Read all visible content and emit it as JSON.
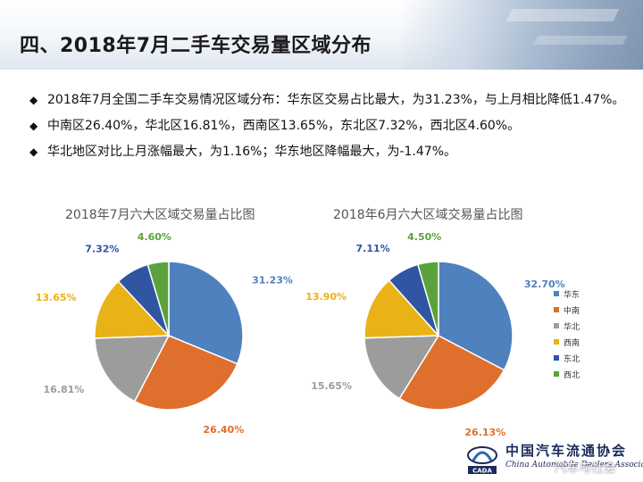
{
  "header": {
    "title": "四、2018年7月二手车交易量区域分布"
  },
  "bullets": [
    "2018年7月全国二手车交易情况区域分布：华东区交易占比最大，为31.23%，与上月相比降低1.47%。",
    "中南区26.40%，华北区16.81%，西南区13.65%，东北区7.32%，西北区4.60%。",
    "华北地区对比上月涨幅最大，为1.16%；华东地区降幅最大，为-1.47%。"
  ],
  "colors": {
    "华东": "#4e81bd",
    "中南": "#de6f2d",
    "华北": "#9c9c9c",
    "西南": "#e9b216",
    "东北": "#2f55a3",
    "西北": "#5aa33c"
  },
  "legend": [
    "华东",
    "中南",
    "华北",
    "西南",
    "东北",
    "西北"
  ],
  "chart_data": [
    {
      "type": "pie",
      "title": "2018年7月六大区域交易量占比图",
      "categories": [
        "华东",
        "中南",
        "华北",
        "西南",
        "东北",
        "西北"
      ],
      "values": [
        31.23,
        26.4,
        16.81,
        13.65,
        7.32,
        4.6
      ],
      "labels": [
        "31.23%",
        "26.40%",
        "16.81%",
        "13.65%",
        "7.32%",
        "4.60%"
      ],
      "legend": "none"
    },
    {
      "type": "pie",
      "title": "2018年6月六大区域交易量占比图",
      "categories": [
        "华东",
        "中南",
        "华北",
        "西南",
        "东北",
        "西北"
      ],
      "values": [
        32.7,
        26.13,
        15.65,
        13.9,
        7.11,
        4.5
      ],
      "labels": [
        "32.70%",
        "26.13%",
        "15.65%",
        "13.90%",
        "7.11%",
        "4.50%"
      ],
      "legend": "right"
    }
  ],
  "footer": {
    "logo_cn": "中国汽车流通协会",
    "logo_en": "China Automobile Dealers Association",
    "logo_mark": "CADA",
    "watermark": "汽车与社会"
  }
}
